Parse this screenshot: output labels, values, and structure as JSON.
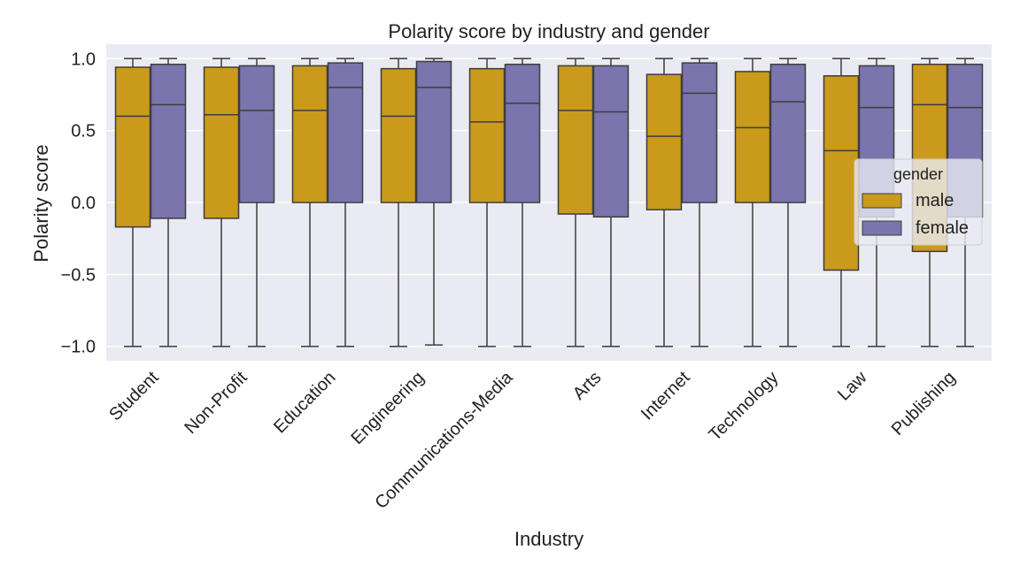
{
  "chart_data": {
    "type": "box",
    "title": "Polarity score by industry and gender",
    "xlabel": "Industry",
    "ylabel": "Polarity score",
    "ylim": [
      -1.1,
      1.1
    ],
    "yticks": [
      -1.0,
      -0.5,
      0.0,
      0.5,
      1.0
    ],
    "ytick_labels": [
      "−1.0",
      "−0.5",
      "0.0",
      "0.5",
      "1.0"
    ],
    "grid": true,
    "legend_position": "right",
    "legend_title": "gender",
    "categories": [
      "Student",
      "Non-Profit",
      "Education",
      "Engineering",
      "Communications-Media",
      "Arts",
      "Internet",
      "Technology",
      "Law",
      "Publishing"
    ],
    "series": [
      {
        "name": "male",
        "color": "#c99a1c",
        "boxes": [
          {
            "whislo": -1.0,
            "q1": -0.17,
            "med": 0.6,
            "q3": 0.94,
            "whishi": 1.0
          },
          {
            "whislo": -1.0,
            "q1": -0.11,
            "med": 0.61,
            "q3": 0.94,
            "whishi": 1.0
          },
          {
            "whislo": -1.0,
            "q1": 0.0,
            "med": 0.64,
            "q3": 0.95,
            "whishi": 1.0
          },
          {
            "whislo": -1.0,
            "q1": 0.0,
            "med": 0.6,
            "q3": 0.93,
            "whishi": 1.0
          },
          {
            "whislo": -1.0,
            "q1": 0.0,
            "med": 0.56,
            "q3": 0.93,
            "whishi": 1.0
          },
          {
            "whislo": -1.0,
            "q1": -0.08,
            "med": 0.64,
            "q3": 0.95,
            "whishi": 1.0
          },
          {
            "whislo": -1.0,
            "q1": -0.05,
            "med": 0.46,
            "q3": 0.89,
            "whishi": 1.0
          },
          {
            "whislo": -1.0,
            "q1": 0.0,
            "med": 0.52,
            "q3": 0.91,
            "whishi": 1.0
          },
          {
            "whislo": -1.0,
            "q1": -0.47,
            "med": 0.36,
            "q3": 0.88,
            "whishi": 1.0
          },
          {
            "whislo": -1.0,
            "q1": -0.34,
            "med": 0.68,
            "q3": 0.96,
            "whishi": 1.0
          }
        ]
      },
      {
        "name": "female",
        "color": "#7b74ad",
        "boxes": [
          {
            "whislo": -1.0,
            "q1": -0.11,
            "med": 0.68,
            "q3": 0.96,
            "whishi": 1.0
          },
          {
            "whislo": -1.0,
            "q1": 0.0,
            "med": 0.64,
            "q3": 0.95,
            "whishi": 1.0
          },
          {
            "whislo": -1.0,
            "q1": 0.0,
            "med": 0.8,
            "q3": 0.97,
            "whishi": 1.0
          },
          {
            "whislo": -0.99,
            "q1": 0.0,
            "med": 0.8,
            "q3": 0.98,
            "whishi": 1.0
          },
          {
            "whislo": -1.0,
            "q1": 0.0,
            "med": 0.69,
            "q3": 0.96,
            "whishi": 1.0
          },
          {
            "whislo": -1.0,
            "q1": -0.1,
            "med": 0.63,
            "q3": 0.95,
            "whishi": 1.0
          },
          {
            "whislo": -1.0,
            "q1": 0.0,
            "med": 0.76,
            "q3": 0.97,
            "whishi": 1.0
          },
          {
            "whislo": -1.0,
            "q1": 0.0,
            "med": 0.7,
            "q3": 0.96,
            "whishi": 1.0
          },
          {
            "whislo": -1.0,
            "q1": -0.1,
            "med": 0.66,
            "q3": 0.95,
            "whishi": 1.0
          },
          {
            "whislo": -1.0,
            "q1": -0.1,
            "med": 0.66,
            "q3": 0.96,
            "whishi": 1.0
          }
        ]
      }
    ]
  }
}
